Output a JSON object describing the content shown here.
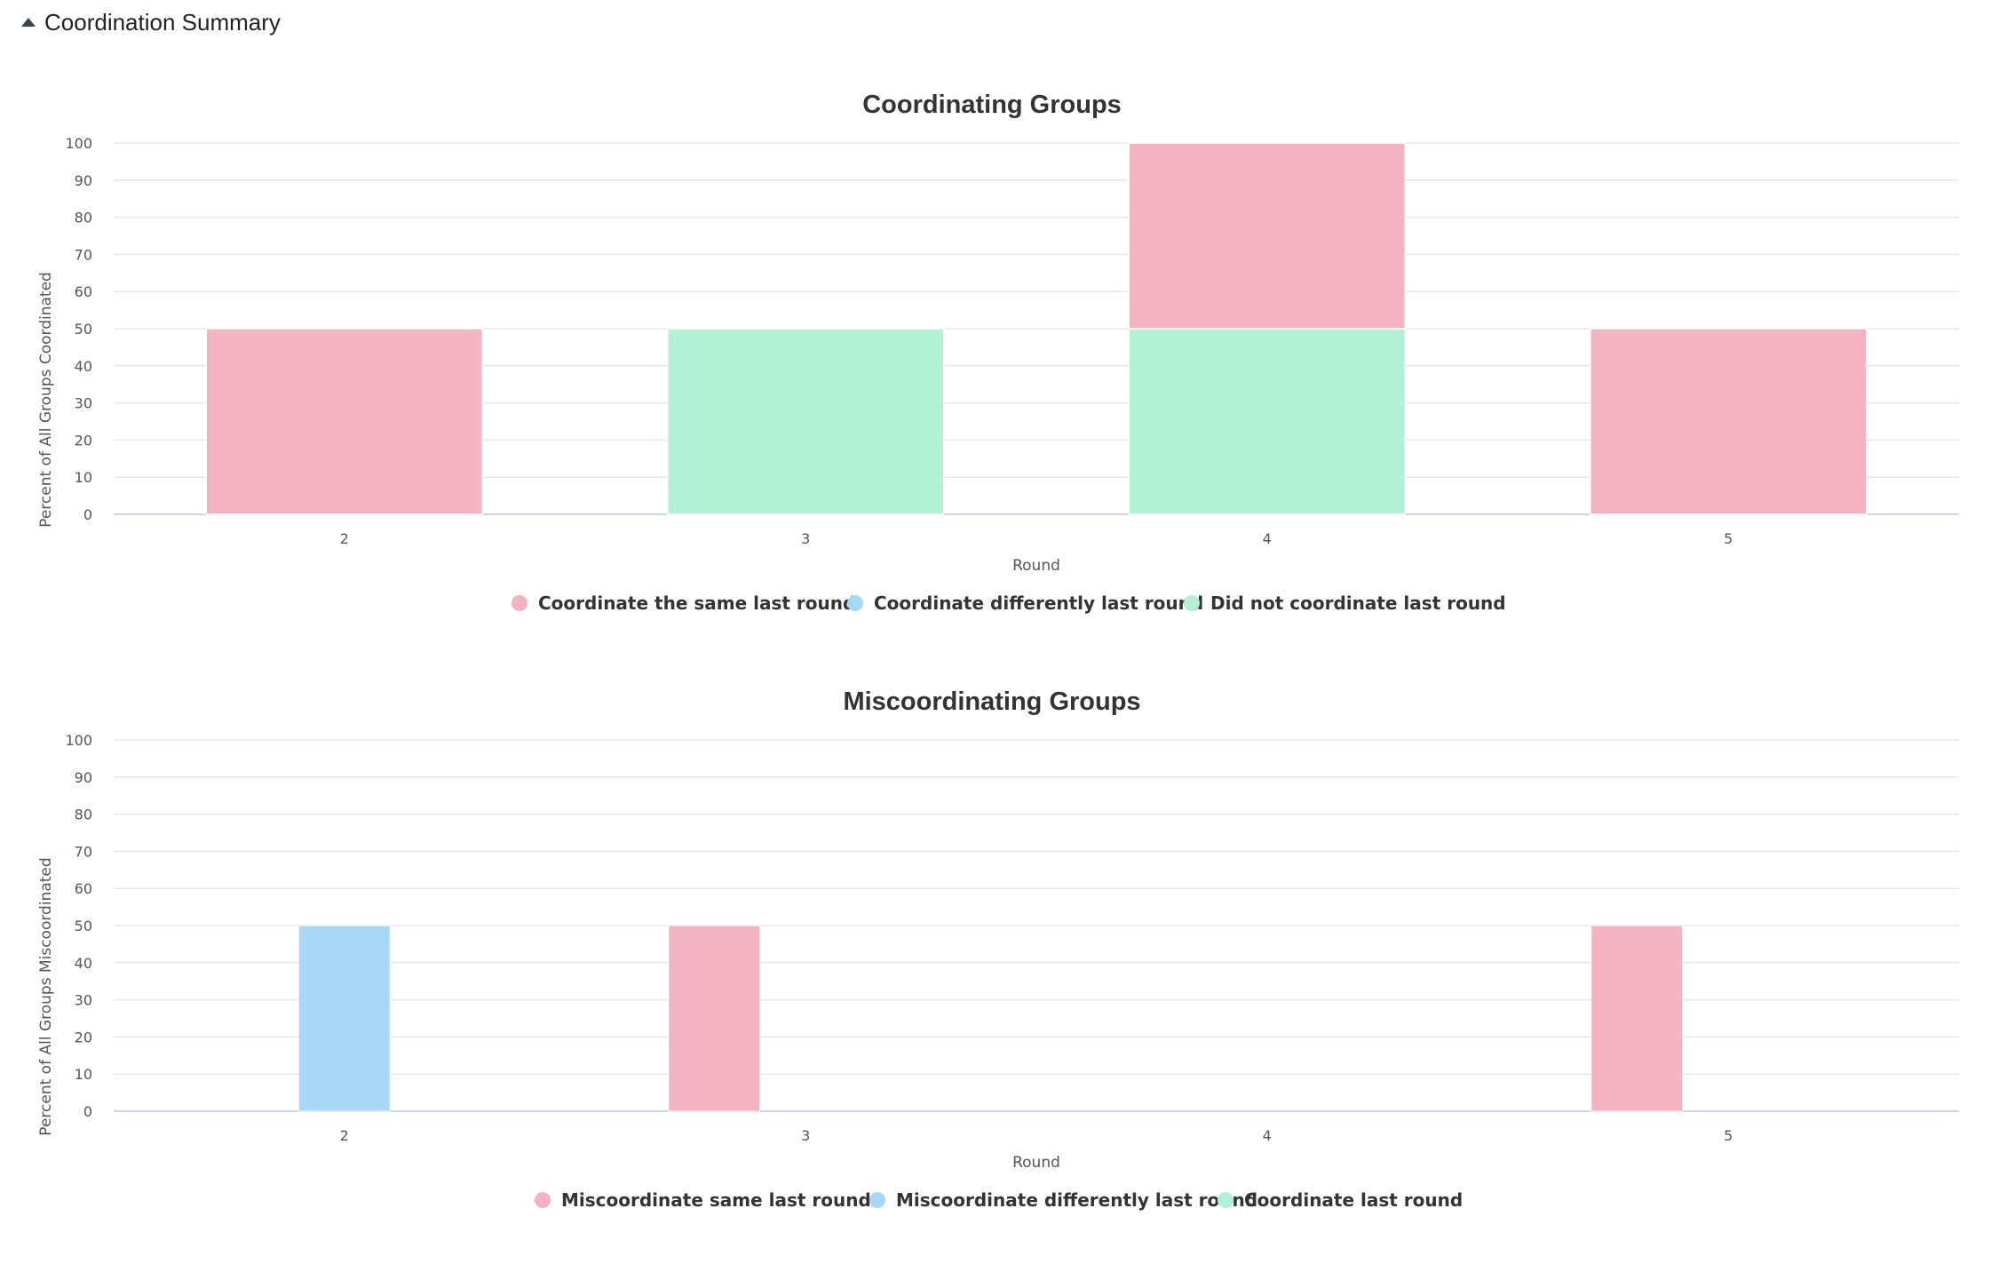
{
  "panel": {
    "title": "Coordination Summary",
    "collapse_icon": "caret-up-icon"
  },
  "charts": [
    {
      "id": "coord",
      "chart_data": {
        "type": "bar",
        "stacking": "normal",
        "title": "Coordinating Groups",
        "xlabel": "Round",
        "ylabel": "Percent of All Groups Coordinated",
        "categories": [
          "2",
          "3",
          "4",
          "5"
        ],
        "ylim": [
          0,
          100
        ],
        "yticks": [
          0,
          10,
          20,
          30,
          40,
          50,
          60,
          70,
          80,
          90,
          100
        ],
        "grid": true,
        "legend_position": "bottom-center",
        "series": [
          {
            "name": "Coordinate the same last round",
            "color": "#f4b3c2",
            "values": [
              50,
              0,
              50,
              50
            ]
          },
          {
            "name": "Coordinate differently last round",
            "color": "#a7d8f7",
            "values": [
              0,
              0,
              0,
              0
            ]
          },
          {
            "name": "Did not coordinate last round",
            "color": "#b1f2d7",
            "values": [
              0,
              50,
              50,
              0
            ]
          }
        ]
      }
    },
    {
      "id": "miscoord",
      "chart_data": {
        "type": "bar",
        "stacking": "none",
        "title": "Miscoordinating Groups",
        "xlabel": "Round",
        "ylabel": "Percent of All Groups Miscoordinated",
        "categories": [
          "2",
          "3",
          "4",
          "5"
        ],
        "ylim": [
          0,
          100
        ],
        "yticks": [
          0,
          10,
          20,
          30,
          40,
          50,
          60,
          70,
          80,
          90,
          100
        ],
        "grid": true,
        "legend_position": "bottom-center",
        "series": [
          {
            "name": "Miscoordinate same last round",
            "color": "#f4b3c2",
            "values": [
              0,
              50,
              0,
              50
            ]
          },
          {
            "name": "Miscoordinate differently last round",
            "color": "#a7d8f7",
            "values": [
              50,
              0,
              0,
              0
            ]
          },
          {
            "name": "Coordinate last round",
            "color": "#b1f2d7",
            "values": [
              0,
              0,
              0,
              0
            ]
          }
        ]
      }
    }
  ]
}
